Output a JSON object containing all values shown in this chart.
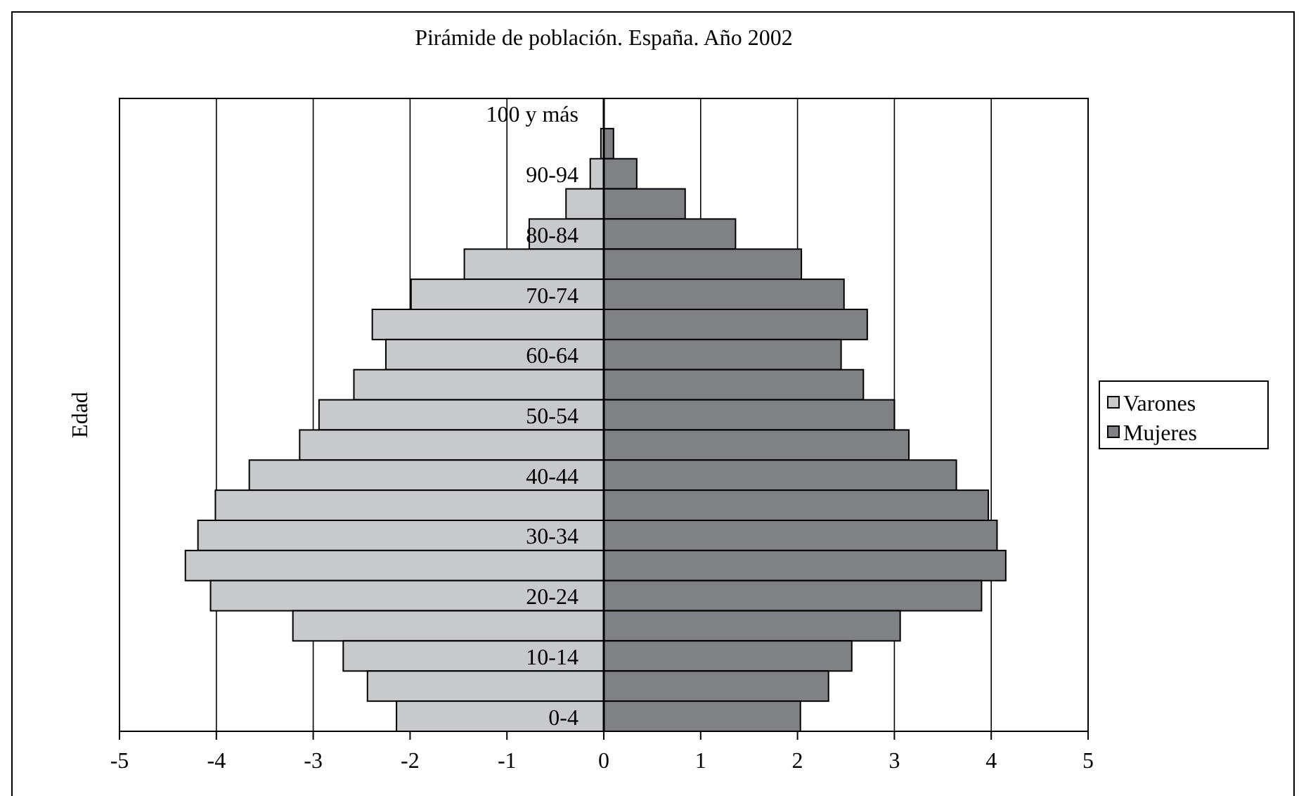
{
  "chart_data": {
    "type": "bar",
    "orientation": "horizontal",
    "stacked": true,
    "title": "Pirámide de población. España. Año 2002",
    "ylabel": "Edad",
    "categories": [
      "100 y más",
      null,
      "90-94",
      null,
      "80-84",
      null,
      "70-74",
      null,
      "60-64",
      null,
      "50-54",
      null,
      "40-44",
      null,
      "30-34",
      null,
      "20-24",
      null,
      "10-14",
      null,
      "0-4"
    ],
    "series": [
      {
        "name": "Varones",
        "color": "#c8c9cb",
        "values": [
          null,
          -0.03,
          -0.14,
          -0.39,
          -0.77,
          -1.44,
          -1.99,
          -2.39,
          -2.25,
          -2.58,
          -2.94,
          -3.14,
          -3.66,
          -4.01,
          -4.19,
          -4.32,
          -4.06,
          -3.21,
          -2.69,
          -2.44,
          -2.14
        ]
      },
      {
        "name": "Mujeres",
        "color": "#808184",
        "values": [
          null,
          0.1,
          0.34,
          0.84,
          1.36,
          2.04,
          2.48,
          2.72,
          2.45,
          2.68,
          3.0,
          3.15,
          3.64,
          3.97,
          4.06,
          4.15,
          3.9,
          3.06,
          2.56,
          2.32,
          2.03
        ]
      }
    ],
    "xlim": [
      -5,
      5
    ],
    "xticks": [
      -5,
      -4,
      -3,
      -2,
      -1,
      0,
      1,
      2,
      3,
      4,
      5
    ],
    "grid": "x",
    "legend": "right"
  }
}
